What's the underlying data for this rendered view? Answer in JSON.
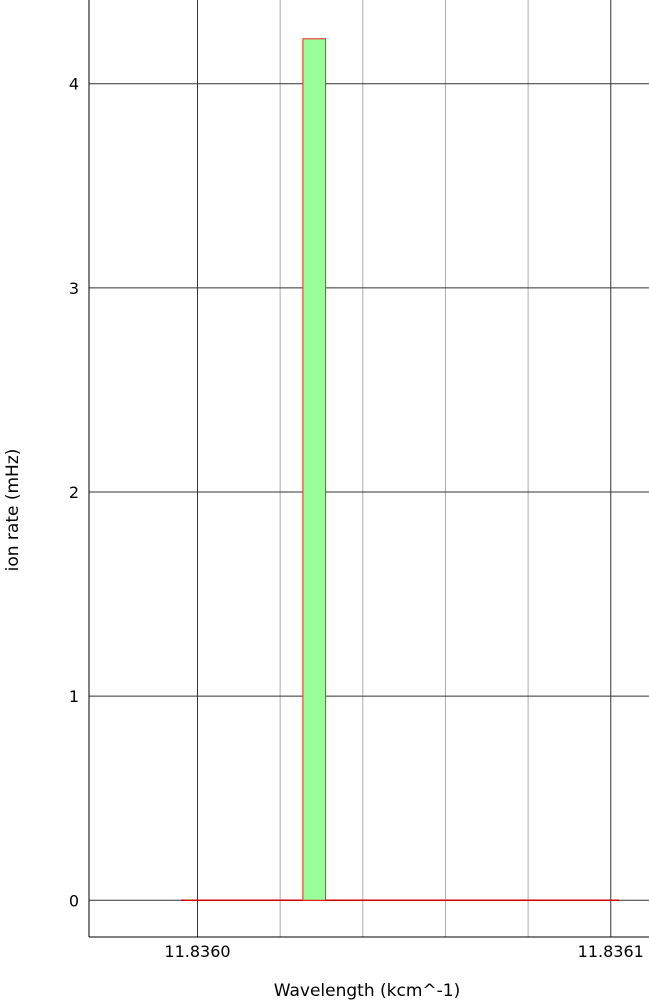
{
  "chart_data": {
    "type": "histogram",
    "title": "",
    "xlabel": "Wavelength (kcm^-1)",
    "ylabel": "ion rate (mHz)",
    "xlim": [
      11.83597375,
      11.83610925
    ],
    "ylim": [
      -0.18,
      4.41
    ],
    "x_ticks": [
      {
        "value": 11.836,
        "label": "11.8360"
      },
      {
        "value": 11.8361,
        "label": "11.8361"
      }
    ],
    "x_minor_grid": [
      11.83602,
      11.83604,
      11.83606,
      11.83608
    ],
    "y_ticks": [
      {
        "value": 0,
        "label": "0"
      },
      {
        "value": 1,
        "label": "1"
      },
      {
        "value": 2,
        "label": "2"
      },
      {
        "value": 3,
        "label": "3"
      },
      {
        "value": 4,
        "label": "4"
      }
    ],
    "baseline": {
      "x_start": 11.835996,
      "x_end": 11.836102,
      "value": 0
    },
    "bars": [
      {
        "x_start": 11.8360255,
        "x_end": 11.836031,
        "value": 4.22
      }
    ],
    "grid": true,
    "colors": {
      "bar_fill": "#99ff99",
      "bar_edge": "#ee2222",
      "baseline": "#cc0000",
      "grid_major": "#333333",
      "grid_minor": "#aaaaaa",
      "axis": "#000000"
    }
  }
}
